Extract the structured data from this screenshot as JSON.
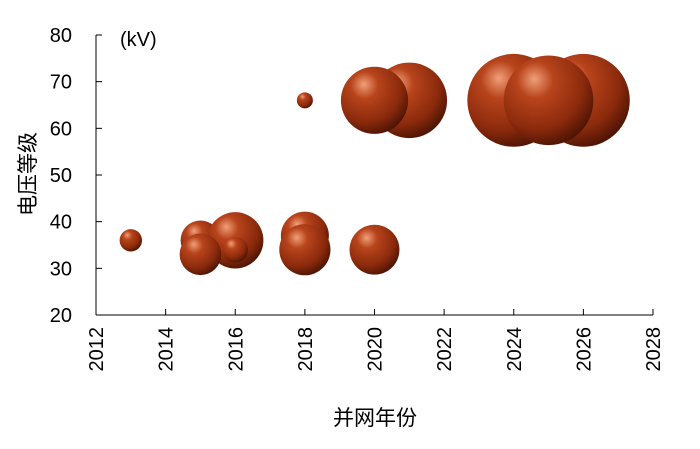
{
  "chart_data": {
    "type": "scatter",
    "variant": "bubble",
    "xlabel": "并网年份",
    "ylabel": "电压等级",
    "unit_label": "(kV)",
    "xlim": [
      2012,
      2028
    ],
    "ylim": [
      20,
      80
    ],
    "xticks": [
      2012,
      2014,
      2016,
      2018,
      2020,
      2022,
      2024,
      2026,
      2028
    ],
    "yticks": [
      20,
      30,
      40,
      50,
      60,
      70,
      80
    ],
    "grid": false,
    "legend": "none",
    "bubble_color": "#8b2a0c",
    "points": [
      {
        "x": 2013,
        "y": 36,
        "size": 0.35
      },
      {
        "x": 2015,
        "y": 36,
        "size": 0.62
      },
      {
        "x": 2016,
        "y": 36,
        "size": 0.88
      },
      {
        "x": 2015,
        "y": 33,
        "size": 0.65
      },
      {
        "x": 2016,
        "y": 34,
        "size": 0.4
      },
      {
        "x": 2018,
        "y": 37,
        "size": 0.75
      },
      {
        "x": 2018,
        "y": 34,
        "size": 0.8
      },
      {
        "x": 2020,
        "y": 34,
        "size": 0.78
      },
      {
        "x": 2018,
        "y": 66,
        "size": 0.25
      },
      {
        "x": 2021,
        "y": 66,
        "size": 1.18
      },
      {
        "x": 2020,
        "y": 66,
        "size": 1.05
      },
      {
        "x": 2026,
        "y": 66,
        "size": 1.45
      },
      {
        "x": 2024,
        "y": 66,
        "size": 1.45
      },
      {
        "x": 2025,
        "y": 66,
        "size": 1.4
      }
    ]
  }
}
